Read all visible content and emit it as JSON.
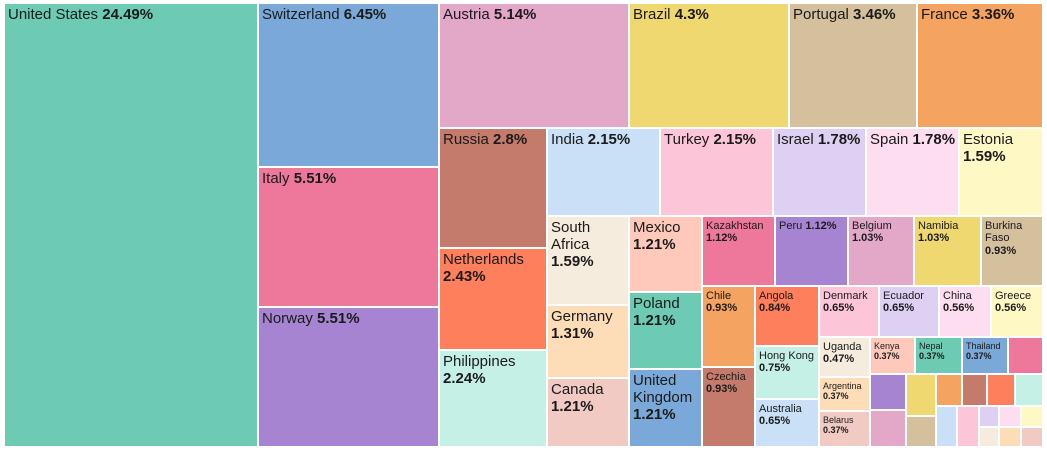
{
  "chart_data": {
    "type": "treemap",
    "title": "",
    "value_unit": "%",
    "items": [
      {
        "name": "United States",
        "value": 24.49,
        "label": "24.49%",
        "color": "#6ccbb2"
      },
      {
        "name": "Switzerland",
        "value": 6.45,
        "label": "6.45%",
        "color": "#7aa9d9"
      },
      {
        "name": "Italy",
        "value": 5.51,
        "label": "5.51%",
        "color": "#ee789c"
      },
      {
        "name": "Norway",
        "value": 5.51,
        "label": "5.51%",
        "color": "#a784d1"
      },
      {
        "name": "Austria",
        "value": 5.14,
        "label": "5.14%",
        "color": "#e3a8c8"
      },
      {
        "name": "Brazil",
        "value": 4.3,
        "label": "4.3%",
        "color": "#efd870"
      },
      {
        "name": "Portugal",
        "value": 3.46,
        "label": "3.46%",
        "color": "#d4c09d"
      },
      {
        "name": "France",
        "value": 3.36,
        "label": "3.36%",
        "color": "#f4a460"
      },
      {
        "name": "Russia",
        "value": 2.8,
        "label": "2.8%",
        "color": "#c47b6b"
      },
      {
        "name": "Netherlands",
        "value": 2.43,
        "label": "2.43%",
        "color": "#fd7f5c"
      },
      {
        "name": "Philippines",
        "value": 2.24,
        "label": "2.24%",
        "color": "#c5f0e6"
      },
      {
        "name": "India",
        "value": 2.15,
        "label": "2.15%",
        "color": "#c9e0f7"
      },
      {
        "name": "Turkey",
        "value": 2.15,
        "label": "2.15%",
        "color": "#fdc5d8"
      },
      {
        "name": "Israel",
        "value": 1.78,
        "label": "1.78%",
        "color": "#ddd0f2"
      },
      {
        "name": "Spain",
        "value": 1.78,
        "label": "1.78%",
        "color": "#fdddf0"
      },
      {
        "name": "Estonia",
        "value": 1.59,
        "label": "1.59%",
        "color": "#fef8c5"
      },
      {
        "name": "South Africa",
        "value": 1.59,
        "label": "1.59%",
        "color": "#f5ecdd"
      },
      {
        "name": "Germany",
        "value": 1.31,
        "label": "1.31%",
        "color": "#fddcb8"
      },
      {
        "name": "Canada",
        "value": 1.21,
        "label": "1.21%",
        "color": "#f1cbc3"
      },
      {
        "name": "Mexico",
        "value": 1.21,
        "label": "1.21%",
        "color": "#fec9bb"
      },
      {
        "name": "Poland",
        "value": 1.21,
        "label": "1.21%",
        "color": "#6ccbb2"
      },
      {
        "name": "United Kingdom",
        "value": 1.21,
        "label": "1.21%",
        "color": "#7aa9d9"
      },
      {
        "name": "Kazakhstan",
        "value": 1.12,
        "label": "1.12%",
        "color": "#ee789c"
      },
      {
        "name": "Peru",
        "value": 1.12,
        "label": "1.12%",
        "color": "#a784d1"
      },
      {
        "name": "Belgium",
        "value": 1.03,
        "label": "1.03%",
        "color": "#e3a8c8"
      },
      {
        "name": "Namibia",
        "value": 1.03,
        "label": "1.03%",
        "color": "#efd870"
      },
      {
        "name": "Burkina Faso",
        "value": 0.93,
        "label": "0.93%",
        "color": "#d4c09d"
      },
      {
        "name": "Chile",
        "value": 0.93,
        "label": "0.93%",
        "color": "#f4a460"
      },
      {
        "name": "Czechia",
        "value": 0.93,
        "label": "0.93%",
        "color": "#c47b6b"
      },
      {
        "name": "Angola",
        "value": 0.84,
        "label": "0.84%",
        "color": "#fd7f5c"
      },
      {
        "name": "Hong Kong",
        "value": 0.75,
        "label": "0.75%",
        "color": "#c5f0e6"
      },
      {
        "name": "Australia",
        "value": 0.65,
        "label": "0.65%",
        "color": "#c9e0f7"
      },
      {
        "name": "Denmark",
        "value": 0.65,
        "label": "0.65%",
        "color": "#fdc5d8"
      },
      {
        "name": "Ecuador",
        "value": 0.65,
        "label": "0.65%",
        "color": "#ddd0f2"
      },
      {
        "name": "China",
        "value": 0.56,
        "label": "0.56%",
        "color": "#fdddf0"
      },
      {
        "name": "Greece",
        "value": 0.56,
        "label": "0.56%",
        "color": "#fef8c5"
      },
      {
        "name": "Uganda",
        "value": 0.47,
        "label": "0.47%",
        "color": "#f5ecdd"
      },
      {
        "name": "Argentina",
        "value": 0.37,
        "label": "0.37%",
        "color": "#fddcb8"
      },
      {
        "name": "Belarus",
        "value": 0.37,
        "label": "0.37%",
        "color": "#f1cbc3"
      },
      {
        "name": "Kenya",
        "value": 0.37,
        "label": "0.37%",
        "color": "#fec9bb"
      },
      {
        "name": "Nepal",
        "value": 0.37,
        "label": "0.37%",
        "color": "#6ccbb2"
      },
      {
        "name": "Thailand",
        "value": 0.37,
        "label": "0.37%",
        "color": "#7aa9d9"
      }
    ],
    "unlabeled_tiles": [
      {
        "color": "#ee789c"
      },
      {
        "color": "#a784d1"
      },
      {
        "color": "#efd870"
      },
      {
        "color": "#f4a460"
      },
      {
        "color": "#c47b6b"
      },
      {
        "color": "#fd7f5c"
      },
      {
        "color": "#c5f0e6"
      },
      {
        "color": "#e3a8c8"
      },
      {
        "color": "#d4c09d"
      },
      {
        "color": "#c9e0f7"
      },
      {
        "color": "#fdc5d8"
      },
      {
        "color": "#ddd0f2"
      },
      {
        "color": "#fdddf0"
      },
      {
        "color": "#fef8c5"
      },
      {
        "color": "#f5ecdd"
      },
      {
        "color": "#fddcb8"
      },
      {
        "color": "#f1cbc3"
      }
    ]
  }
}
